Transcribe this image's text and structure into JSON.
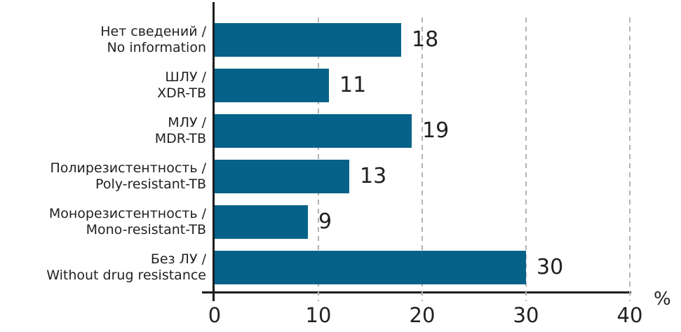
{
  "chart_data": {
    "type": "bar",
    "orientation": "horizontal",
    "title": "",
    "categories": [
      "Нет сведений / No information",
      "ШЛУ / XDR-TB",
      "МЛУ / MDR-TB",
      "Полирезистентность / Poly-resistant-TB",
      "Монорезистентность / Mono-resistant-TB",
      "Без ЛУ / Without drug resistance"
    ],
    "categories_lines": [
      [
        "Нет сведений /",
        "No information"
      ],
      [
        "ШЛУ /",
        "XDR-TB"
      ],
      [
        "МЛУ /",
        "MDR-TB"
      ],
      [
        "Полирезистентность /",
        "Poly-resistant-TB"
      ],
      [
        "Монорезистентность /",
        "Mono-resistant-TB"
      ],
      [
        "Без ЛУ /",
        "Without drug resistance"
      ]
    ],
    "values": [
      18,
      11,
      19,
      13,
      9,
      30
    ],
    "value_labels_shown": true,
    "xlabel": "",
    "ylabel": "",
    "x_unit_label": "%",
    "xlim": [
      0,
      40
    ],
    "xticks": [
      0,
      10,
      20,
      30,
      40
    ],
    "grid": "vertical-dashed",
    "legend": "none",
    "colors": {
      "bar": "#066289",
      "axis": "#1c1c1c",
      "grid": "#b3b3b3",
      "text": "#231f20"
    }
  }
}
